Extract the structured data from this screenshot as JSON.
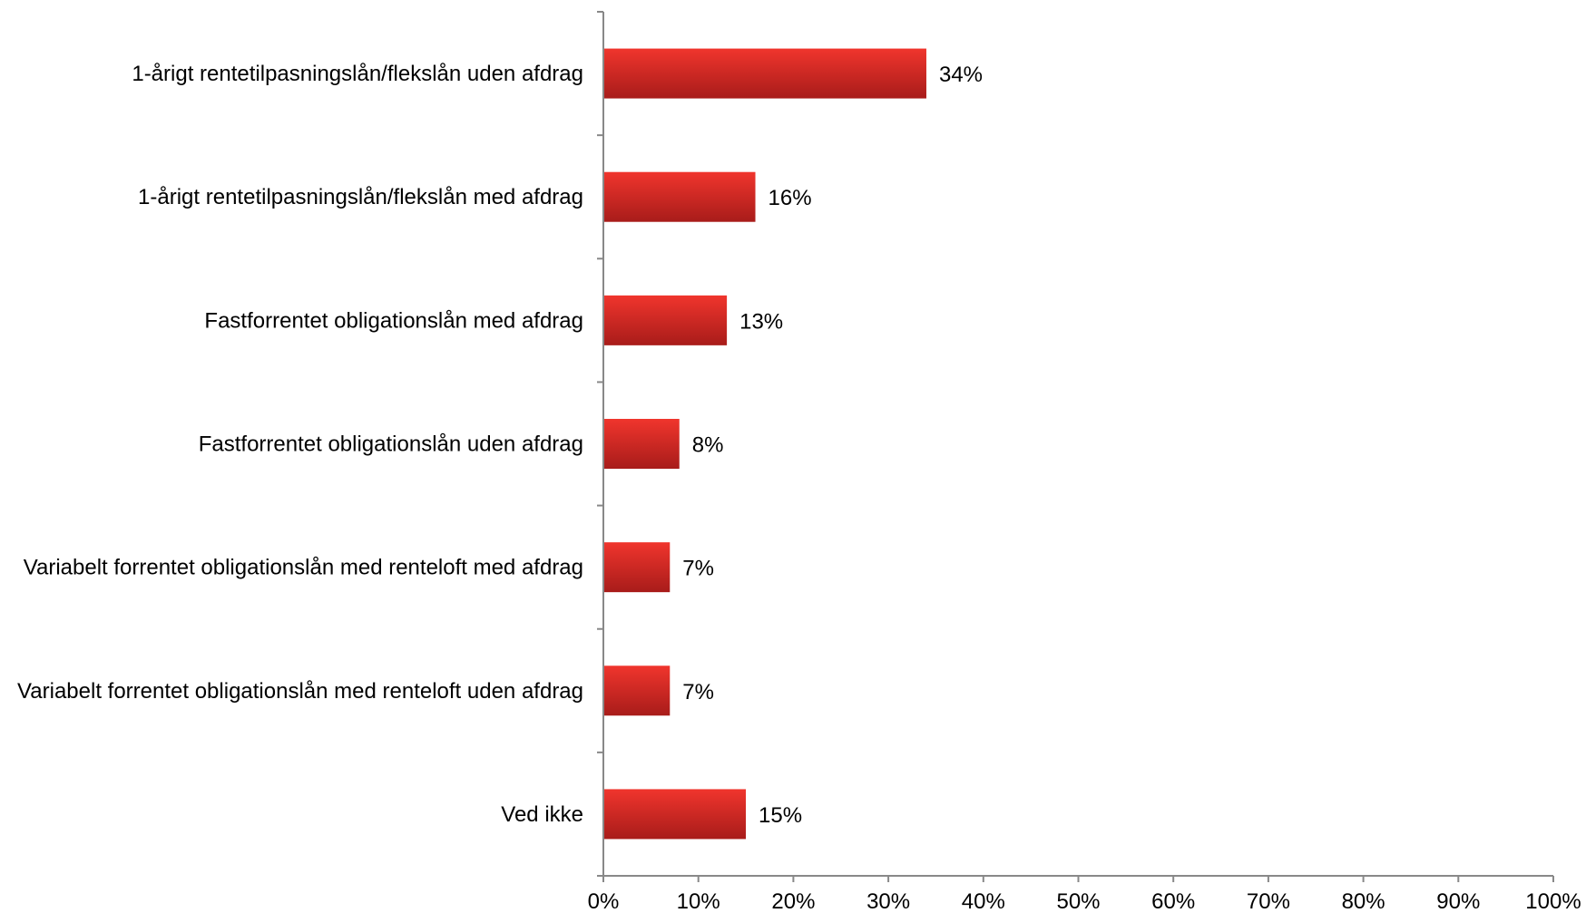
{
  "chart_data": {
    "type": "bar",
    "orientation": "horizontal",
    "title": "",
    "xlabel": "",
    "ylabel": "",
    "categories": [
      "1-årigt rentetilpasningslån/flekslån uden afdrag",
      "1-årigt rentetilpasningslån/flekslån med afdrag",
      "Fastforrentet obligationslån med afdrag",
      "Fastforrentet obligationslån uden afdrag",
      "Variabelt forrentet obligationslån med renteloft med afdrag",
      "Variabelt forrentet obligationslån med renteloft uden afdrag",
      "Ved ikke"
    ],
    "values": [
      34,
      16,
      13,
      8,
      7,
      7,
      15
    ],
    "value_labels": [
      "34%",
      "16%",
      "13%",
      "8%",
      "7%",
      "7%",
      "15%"
    ],
    "xlim": [
      0,
      100
    ],
    "x_ticks": [
      "0%",
      "10%",
      "20%",
      "30%",
      "40%",
      "50%",
      "60%",
      "70%",
      "80%",
      "90%",
      "100%"
    ],
    "grid": false,
    "legend": "none",
    "colors": {
      "bar_top": "#f0352d",
      "bar_bottom": "#a81c1a",
      "axis": "#888888"
    }
  }
}
